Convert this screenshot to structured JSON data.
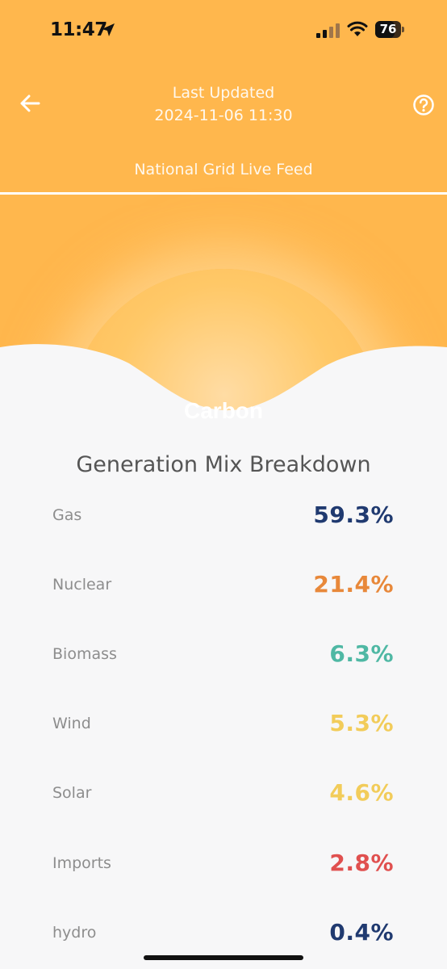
{
  "status_bar": {
    "time": "11:47",
    "battery": "76",
    "battery_level": 0.76
  },
  "header": {
    "last_updated_label": "Last Updated",
    "last_updated_value": "2024-11-06 11:30",
    "feed_label": "National Grid Live Feed",
    "back_icon": "arrow-left-icon",
    "help_icon": "question-circle-icon"
  },
  "hero": {
    "label": "Carbon"
  },
  "breakdown": {
    "title": "Generation Mix Breakdown",
    "items": [
      {
        "name": "Gas",
        "value": "59.3%",
        "color": "#203a70"
      },
      {
        "name": "Nuclear",
        "value": "21.4%",
        "color": "#e8883a"
      },
      {
        "name": "Biomass",
        "value": "6.3%",
        "color": "#4fb8a4"
      },
      {
        "name": "Wind",
        "value": "5.3%",
        "color": "#f2cc5a"
      },
      {
        "name": "Solar",
        "value": "4.6%",
        "color": "#f2cc5a"
      },
      {
        "name": "Imports",
        "value": "2.8%",
        "color": "#e0504f"
      },
      {
        "name": "hydro",
        "value": "0.4%",
        "color": "#203a70"
      }
    ]
  },
  "colors": {
    "header_bg": "#ffb74d",
    "page_bg": "#f7f7f8"
  }
}
